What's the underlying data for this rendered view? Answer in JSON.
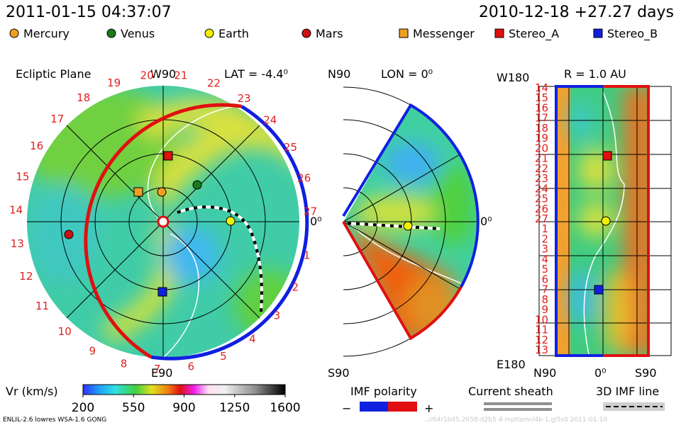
{
  "header": {
    "model_time": "2011-01-15 04:37:07",
    "reference": "2010-12-18 +27.27 days"
  },
  "legend": [
    {
      "name": "Mercury",
      "color": "#f0a020",
      "marker": "circle"
    },
    {
      "name": "Venus",
      "color": "#1a7a1a",
      "marker": "circle"
    },
    {
      "name": "Earth",
      "color": "#f0f000",
      "marker": "circle"
    },
    {
      "name": "Mars",
      "color": "#d01010",
      "marker": "circle"
    },
    {
      "name": "Messenger",
      "color": "#f0a020",
      "marker": "square"
    },
    {
      "name": "Stereo_A",
      "color": "#e01010",
      "marker": "square"
    },
    {
      "name": "Stereo_B",
      "color": "#1020e0",
      "marker": "square"
    }
  ],
  "ecliptic": {
    "title": "Ecliptic Plane",
    "top": "W90",
    "bottom": "E90",
    "lat": "LAT = -4.4⁰",
    "right": "0⁰",
    "longitudes": [
      1,
      2,
      3,
      4,
      5,
      6,
      7,
      8,
      9,
      10,
      11,
      12,
      13,
      14,
      15,
      16,
      17,
      18,
      19,
      20,
      21,
      22,
      23,
      24,
      25,
      26,
      27
    ]
  },
  "meridional": {
    "top": "N90",
    "lon": "LON = 0⁰",
    "right": "0⁰",
    "bottom": "S90"
  },
  "sphere": {
    "top": "W180",
    "radius": "R = 1.0 AU",
    "bottom": "E180",
    "x_labels": [
      "N90",
      "0⁰",
      "S90"
    ],
    "rows": [
      14,
      15,
      16,
      17,
      18,
      19,
      20,
      21,
      22,
      23,
      24,
      25,
      26,
      27,
      1,
      2,
      3,
      4,
      5,
      6,
      7,
      8,
      9,
      10,
      11,
      12,
      13
    ]
  },
  "colorbar": {
    "label": "Vr (km/s)",
    "range": [
      200,
      1600
    ],
    "ticks": [
      200,
      550,
      900,
      1250,
      1600
    ]
  },
  "imf": {
    "title": "IMF polarity",
    "minus": "−",
    "plus": "+"
  },
  "sheath": "Current sheath",
  "imf_line": "3D IMF line",
  "footer": {
    "left": "ENLIL-2.6 lowres WSA-1.6 GONG",
    "right": "..//64r1b45.2058-d2b5 4-mptlsmnl4k-1.gl5s0   2011-01-10"
  }
}
